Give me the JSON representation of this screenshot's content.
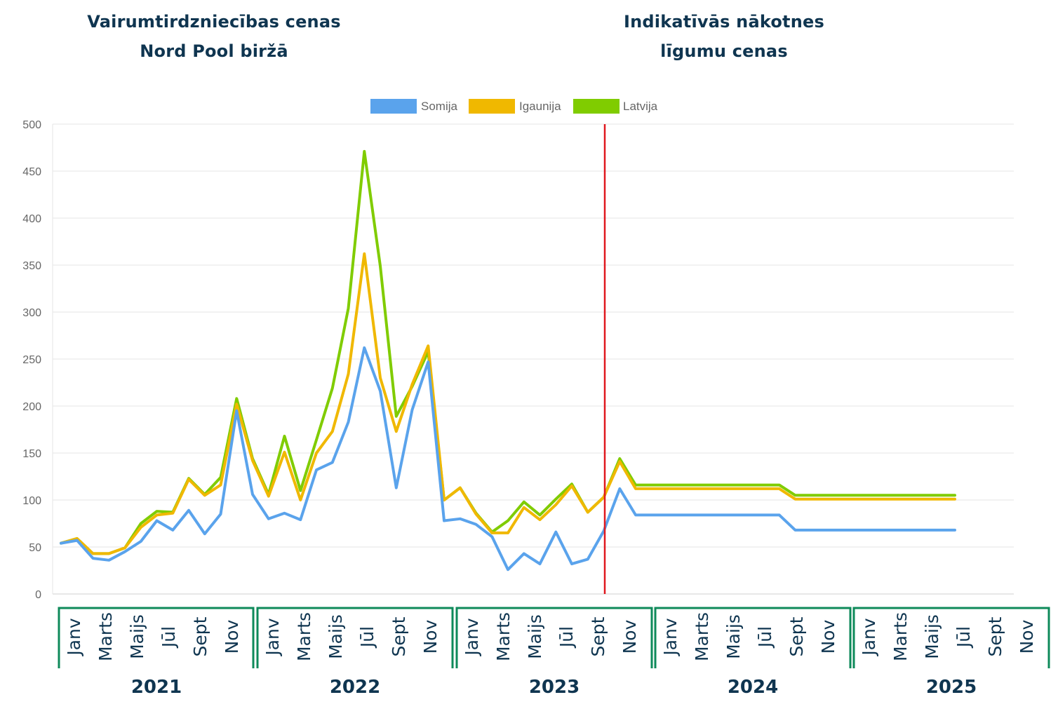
{
  "headings": {
    "left": [
      "Vairumtirdzniecības cenas",
      "Nord Pool biržā"
    ],
    "right": [
      "Indikatīvās nākotnes",
      "līgumu cenas"
    ]
  },
  "colors": {
    "somija": "#5aa3ec",
    "igaunija": "#f0b800",
    "latvija": "#80cc00",
    "divider": "#e0181f",
    "year_bracket": "#0e8a5a",
    "text": "#0f3550"
  },
  "chart_data": {
    "type": "line",
    "ylim": [
      0,
      500
    ],
    "yticks": [
      0,
      50,
      100,
      150,
      200,
      250,
      300,
      350,
      400,
      450,
      500
    ],
    "grid": true,
    "legend_position": "top-center",
    "x_month_labels": [
      "Janv",
      "Marts",
      "Maijs",
      "Jūl",
      "Sept",
      "Nov"
    ],
    "years": [
      "2021",
      "2022",
      "2023",
      "2024",
      "2025"
    ],
    "divider_after": "2023-09",
    "series": [
      {
        "name": "Somija",
        "color": "#5aa3ec",
        "values": [
          54,
          57,
          38,
          36,
          45,
          56,
          78,
          68,
          89,
          64,
          85,
          195,
          106,
          80,
          86,
          79,
          132,
          140,
          183,
          262,
          216,
          113,
          196,
          247,
          78,
          80,
          74,
          61,
          26,
          43,
          32,
          66,
          32,
          37,
          67,
          112,
          84,
          84,
          84,
          84,
          84,
          84,
          84,
          84,
          84,
          84,
          68,
          68,
          68,
          68,
          68,
          68,
          68,
          68,
          68,
          68,
          68
        ]
      },
      {
        "name": "Igaunija",
        "color": "#f0b800",
        "values": [
          54,
          59,
          43,
          43,
          49,
          71,
          84,
          86,
          122,
          105,
          116,
          202,
          142,
          104,
          151,
          100,
          150,
          173,
          234,
          362,
          230,
          173,
          223,
          264,
          100,
          113,
          85,
          65,
          65,
          92,
          79,
          95,
          115,
          87,
          103,
          141,
          112,
          112,
          112,
          112,
          112,
          112,
          112,
          112,
          112,
          112,
          101,
          101,
          101,
          101,
          101,
          101,
          101,
          101,
          101,
          101,
          101
        ]
      },
      {
        "name": "Latvija",
        "color": "#80cc00",
        "values": [
          54,
          59,
          43,
          43,
          49,
          75,
          88,
          87,
          123,
          106,
          124,
          208,
          144,
          106,
          168,
          110,
          164,
          219,
          304,
          471,
          349,
          189,
          221,
          258,
          100,
          113,
          86,
          66,
          78,
          98,
          84,
          101,
          117,
          87,
          103,
          144,
          116,
          116,
          116,
          116,
          116,
          116,
          116,
          116,
          116,
          116,
          105,
          105,
          105,
          105,
          105,
          105,
          105,
          105,
          105,
          105,
          105
        ]
      }
    ]
  }
}
